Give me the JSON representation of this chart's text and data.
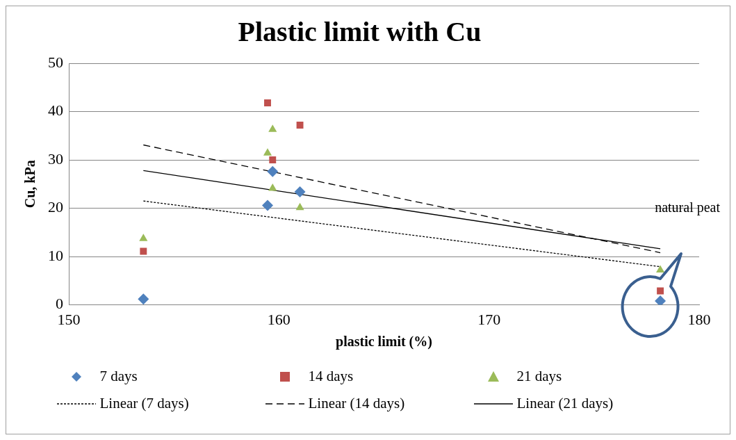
{
  "chart_data": {
    "type": "scatter",
    "title": "Plastic limit with Cu",
    "xlabel": "plastic limit (%)",
    "ylabel": "Cu, kPa",
    "xlim": [
      150,
      180
    ],
    "xticks": [
      150,
      160,
      170,
      180
    ],
    "ylim": [
      0,
      50
    ],
    "yticks": [
      0,
      10,
      20,
      30,
      40,
      50
    ],
    "grid": "y",
    "legend": "bottom",
    "series": [
      {
        "name": "7 days",
        "color": "#4f81bd",
        "marker": "diamond",
        "x": [
          153.55,
          159.46,
          159.7,
          161.0,
          178.15
        ],
        "values": [
          1.2,
          20.6,
          27.6,
          23.4,
          0.8
        ]
      },
      {
        "name": "14 days",
        "color": "#c0504d",
        "marker": "square",
        "x": [
          153.55,
          159.46,
          159.7,
          161.0,
          178.15
        ],
        "values": [
          11.1,
          41.8,
          30.0,
          37.2,
          2.9
        ]
      },
      {
        "name": "21 days",
        "color": "#9bbb59",
        "marker": "triangle",
        "x": [
          153.55,
          159.46,
          159.7,
          159.7,
          161.0,
          178.15
        ],
        "values": [
          13.7,
          31.4,
          36.3,
          24.1,
          20.1,
          7.2
        ]
      },
      {
        "name": "Linear (7 days)",
        "type": "line",
        "color": "#000000",
        "marker": "none",
        "line_style": "dotted",
        "x": [
          153.55,
          178.15
        ],
        "values": [
          21.5,
          7.9
        ]
      },
      {
        "name": "Linear (14 days)",
        "type": "line",
        "color": "#000000",
        "marker": "none",
        "line_style": "dashed",
        "x": [
          153.55,
          178.15
        ],
        "values": [
          33.1,
          10.8
        ]
      },
      {
        "name": "Linear (21 days)",
        "type": "line",
        "color": "#000000",
        "marker": "none",
        "line_style": "solid",
        "x": [
          153.55,
          178.15
        ],
        "values": [
          27.8,
          11.6
        ]
      }
    ],
    "annotations": [
      "natural peat"
    ]
  }
}
